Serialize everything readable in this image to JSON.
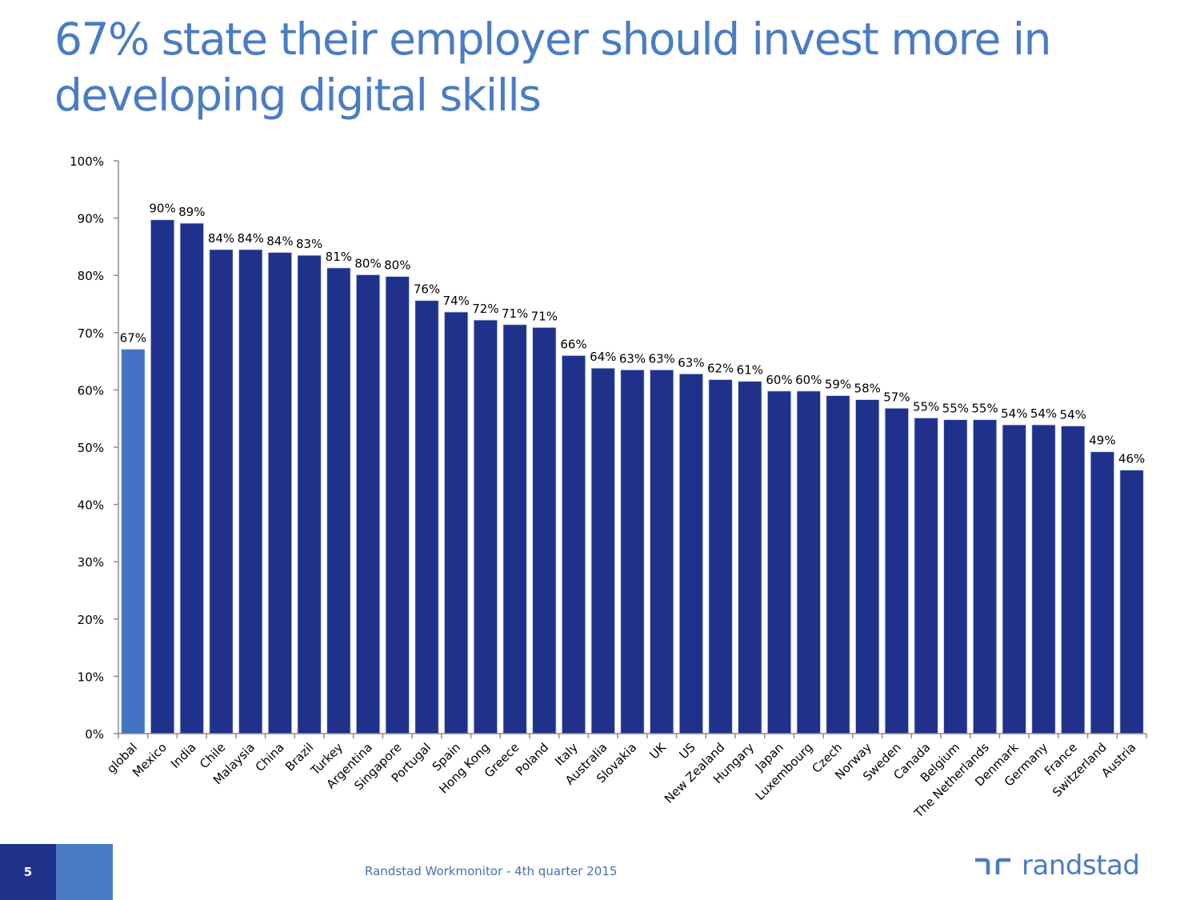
{
  "slide": {
    "title": "67% state their employer should invest more in developing digital skills",
    "page_number": "5",
    "footer_text": "Randstad Workmonitor - 4th quarter 2015",
    "logo_text": "randstad",
    "logo_icon": "randstad-logo-icon"
  },
  "colors": {
    "title": "#4a7cc3",
    "bar_global": "#4472c4",
    "bar_country": "#1f318b",
    "footer_dark": "#1f318b",
    "footer_light": "#4a7cc3"
  },
  "chart_data": {
    "type": "bar",
    "title": "",
    "xlabel": "",
    "ylabel": "",
    "ylim": [
      0,
      100
    ],
    "yticks": [
      "0%",
      "10%",
      "20%",
      "30%",
      "40%",
      "50%",
      "60%",
      "70%",
      "80%",
      "90%",
      "100%"
    ],
    "grid": false,
    "legend": "none",
    "categories": [
      "global",
      "Mexico",
      "India",
      "Chile",
      "Malaysia",
      "China",
      "Brazil",
      "Turkey",
      "Argentina",
      "Singapore",
      "Portugal",
      "Spain",
      "Hong Kong",
      "Greece",
      "Poland",
      "Italy",
      "Australia",
      "Slovakia",
      "UK",
      "US",
      "New Zealand",
      "Hungary",
      "Japan",
      "Luxembourg",
      "Czech",
      "Norway",
      "Sweden",
      "Canada",
      "Belgium",
      "The Netherlands",
      "Denmark",
      "Germany",
      "France",
      "Switzerland",
      "Austria"
    ],
    "values": [
      67.1,
      89.7,
      89.1,
      84.5,
      84.5,
      84.0,
      83.5,
      81.3,
      80.1,
      79.8,
      75.6,
      73.6,
      72.2,
      71.4,
      70.9,
      66.0,
      63.8,
      63.5,
      63.5,
      62.8,
      61.8,
      61.5,
      59.8,
      59.8,
      59.0,
      58.3,
      56.8,
      55.1,
      54.8,
      54.8,
      53.9,
      53.9,
      53.7,
      49.2,
      46.0
    ],
    "labels": [
      "67%",
      "90%",
      "89%",
      "84%",
      "84%",
      "84%",
      "83%",
      "81%",
      "80%",
      "80%",
      "76%",
      "74%",
      "72%",
      "71%",
      "71%",
      "66%",
      "64%",
      "63%",
      "63%",
      "63%",
      "62%",
      "61%",
      "60%",
      "60%",
      "59%",
      "58%",
      "57%",
      "55%",
      "55%",
      "55%",
      "54%",
      "54%",
      "54%",
      "49%",
      "46%"
    ],
    "highlight_category": "global"
  }
}
